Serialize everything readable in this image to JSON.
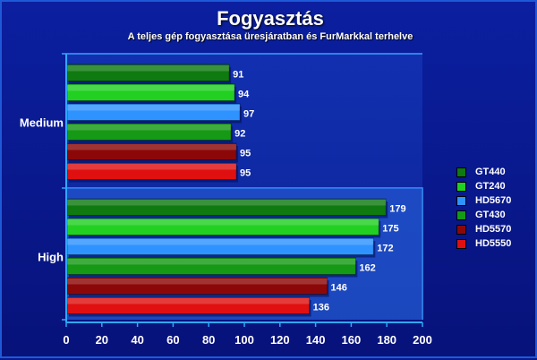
{
  "chart_data": {
    "type": "bar",
    "orientation": "horizontal",
    "title": "Fogyasztás",
    "subtitle": "A teljes gép fogyasztása üresjáratban és FurMarkkal terhelve",
    "categories": [
      "Medium",
      "High"
    ],
    "series": [
      {
        "name": "GT440",
        "color": "#0f7a10",
        "values": [
          91,
          179
        ]
      },
      {
        "name": "GT240",
        "color": "#22d022",
        "values": [
          94,
          175
        ]
      },
      {
        "name": "HD5670",
        "color": "#2f93ff",
        "values": [
          97,
          172
        ]
      },
      {
        "name": "GT430",
        "color": "#169a16",
        "values": [
          92,
          162
        ]
      },
      {
        "name": "HD5570",
        "color": "#8c0808",
        "values": [
          95,
          146
        ]
      },
      {
        "name": "HD5550",
        "color": "#e01010",
        "values": [
          95,
          136
        ]
      }
    ],
    "xlim": [
      0,
      200
    ],
    "xticks": [
      "0",
      "20",
      "40",
      "60",
      "80",
      "100",
      "120",
      "140",
      "160",
      "180",
      "200"
    ],
    "grid": false,
    "legend_position": "right"
  }
}
